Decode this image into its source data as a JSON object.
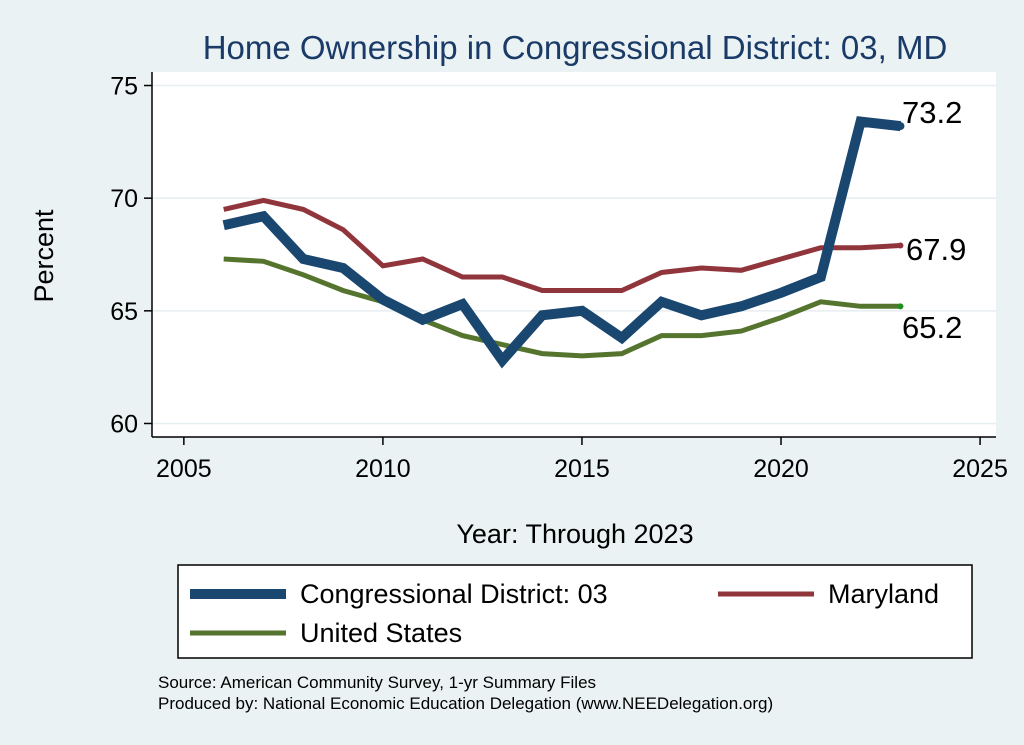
{
  "chart_data": {
    "type": "line",
    "title": "Home Ownership in Congressional District:  03, MD",
    "xlabel": "Year: Through 2023",
    "ylabel": "Percent",
    "xlim": [
      2004.2,
      2025.4
    ],
    "ylim": [
      59.4,
      75.6
    ],
    "xticks": [
      2005,
      2010,
      2015,
      2020,
      2025
    ],
    "yticks": [
      60,
      65,
      70,
      75
    ],
    "x": [
      2006,
      2007,
      2008,
      2009,
      2010,
      2011,
      2012,
      2013,
      2014,
      2015,
      2016,
      2017,
      2018,
      2019,
      2020,
      2021,
      2022,
      2023
    ],
    "series": [
      {
        "name": "Congressional District:  03",
        "color": "#1a476f",
        "values": [
          68.8,
          69.2,
          67.3,
          66.9,
          65.5,
          64.6,
          65.3,
          62.8,
          64.8,
          65.0,
          63.8,
          65.4,
          64.8,
          65.2,
          65.8,
          66.5,
          73.4,
          73.2
        ],
        "end_label": "73.2"
      },
      {
        "name": "Maryland",
        "color": "#90353b",
        "values": [
          69.5,
          69.9,
          69.5,
          68.6,
          67.0,
          67.3,
          66.5,
          66.5,
          65.9,
          65.9,
          65.9,
          66.7,
          66.9,
          66.8,
          67.3,
          67.8,
          67.8,
          67.9
        ],
        "end_label": "67.9"
      },
      {
        "name": "United States",
        "color": "#55752f",
        "values": [
          67.3,
          67.2,
          66.6,
          65.9,
          65.4,
          64.6,
          63.9,
          63.5,
          63.1,
          63.0,
          63.1,
          63.9,
          63.9,
          64.1,
          64.7,
          65.4,
          65.2,
          65.2
        ],
        "end_label": "65.2"
      }
    ],
    "legend": {
      "position": "bottom",
      "entries": [
        "Congressional District:  03",
        "Maryland",
        "United States"
      ]
    },
    "grid": true
  },
  "source_line": "Source: American Community Survey, 1-yr Summary Files",
  "produced_line": "Produced by: National Economic Education Delegation (www.NEEDelegation.org)"
}
